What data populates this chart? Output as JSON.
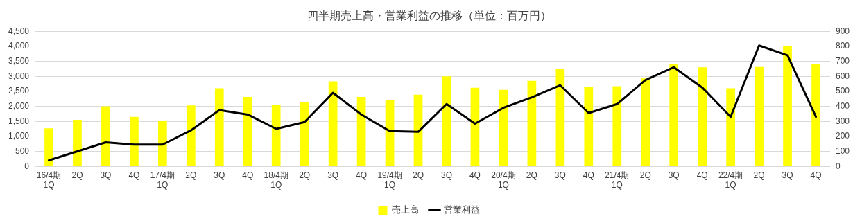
{
  "chart_data": {
    "type": "bar",
    "title": "四半期売上高・営業利益の推移（単位：百万円）",
    "categories": [
      "16/4期\n1Q",
      "2Q",
      "3Q",
      "4Q",
      "17/4期\n1Q",
      "2Q",
      "3Q",
      "4Q",
      "18/4期\n1Q",
      "2Q",
      "3Q",
      "4Q",
      "19/4期\n1Q",
      "2Q",
      "3Q",
      "4Q",
      "20/4期\n1Q",
      "2Q",
      "3Q",
      "4Q",
      "21/4期\n1Q",
      "2Q",
      "3Q",
      "4Q",
      "22/4期\n1Q",
      "2Q",
      "3Q",
      "4Q"
    ],
    "series": [
      {
        "name": "売上高",
        "color": "#ffff00",
        "values": [
          1270,
          1550,
          2000,
          1650,
          1520,
          2030,
          2600,
          2310,
          2060,
          2140,
          2830,
          2310,
          2210,
          2390,
          3000,
          2620,
          2550,
          2850,
          3240,
          2650,
          2670,
          2930,
          3420,
          3300,
          2600,
          3310,
          4000,
          3420
        ]
      },
      {
        "name": "営業利益",
        "type": "line",
        "axis": "y2",
        "color": "#000000",
        "values": [
          40,
          100,
          160,
          145,
          145,
          240,
          375,
          345,
          250,
          295,
          490,
          345,
          235,
          230,
          415,
          285,
          390,
          460,
          540,
          355,
          415,
          575,
          660,
          525,
          330,
          805,
          740,
          330
        ]
      }
    ],
    "ylim": [
      0,
      4500
    ],
    "yticks": [
      0,
      {
        "value": 500,
        "label": "500"
      },
      {
        "value": 1000,
        "label": "1,000"
      },
      {
        "value": 1500,
        "label": "1,500"
      },
      {
        "value": 2000,
        "label": "2,000"
      },
      {
        "value": 2500,
        "label": "2,500"
      },
      {
        "value": 3000,
        "label": "3,000"
      },
      {
        "value": 3500,
        "label": "3,500"
      },
      {
        "value": 4000,
        "label": "4,000"
      },
      {
        "value": 4500,
        "label": "4,500"
      }
    ],
    "y2lim": [
      0,
      900
    ],
    "y2ticks": [
      0,
      100,
      200,
      300,
      400,
      500,
      600,
      700,
      800,
      900
    ],
    "grid": "y",
    "legend": "bottom",
    "marker": "none",
    "line_style": "solid"
  }
}
